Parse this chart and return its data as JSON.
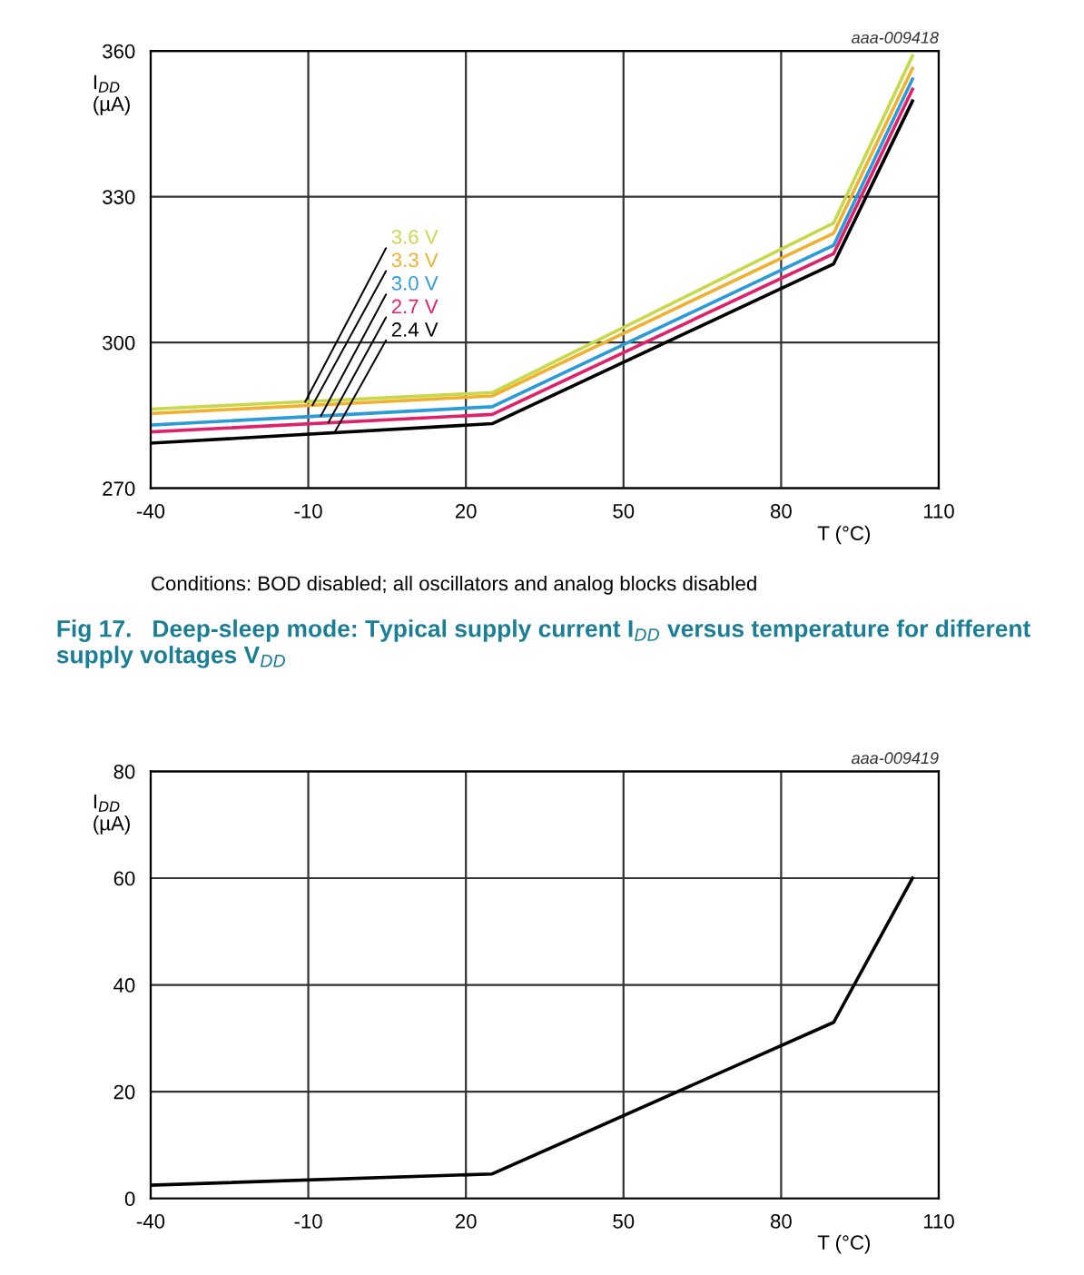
{
  "chart_data": [
    {
      "type": "line",
      "title": "Fig 17.   Deep-sleep mode: Typical supply current I$_{DD}$ versus temperature for different supply voltages V$_{DD}$",
      "xlabel": "T (°C)",
      "ylabel": "I$_{DD}$\n(µA)",
      "x": [
        -40,
        25,
        90,
        105
      ],
      "series": [
        {
          "color": "#c8d84a",
          "values": [
            286.3,
            289.7,
            324.6,
            359
          ]
        },
        {
          "color": "#f0b030",
          "values": [
            285.4,
            289,
            322.5,
            356.4
          ]
        },
        {
          "color": "#2a9ad8",
          "values": [
            283,
            286.8,
            320,
            354.2
          ]
        },
        {
          "color": "#e0206a",
          "values": [
            281.6,
            285.2,
            318.3,
            352.1
          ]
        },
        {
          "color": "#000000",
          "values": [
            279.3,
            283.3,
            316.2,
            349.7
          ]
        }
      ],
      "annotations": [
        {
          "text": "3.6 V",
          "x": -10.6,
          "y": 287.8
        },
        {
          "text": "3.3 V",
          "x": -9.2,
          "y": 287.1
        },
        {
          "text": "3.0 V",
          "x": -7.6,
          "y": 284.9
        },
        {
          "text": "2.7 V",
          "x": -6.2,
          "y": 283.5
        },
        {
          "text": "2.4 V",
          "x": -5,
          "y": 281.5
        },
        "aaa-009418",
        "Conditions: BOD disabled; all oscillators and analog blocks disabled"
      ],
      "xlim": [
        -40,
        110
      ],
      "ylim": [
        270,
        360
      ],
      "xticks": [
        -40,
        -10,
        20,
        50,
        80,
        110
      ],
      "yticks": [
        270,
        300,
        330,
        360
      ],
      "grid": true,
      "marker": "none",
      "line_style": "solid"
    },
    {
      "type": "line",
      "xlabel": "T (°C)",
      "ylabel": "I$_{DD}$\n(µA)",
      "x": [
        -40,
        25,
        90,
        105
      ],
      "series": [
        {
          "color": "#000000",
          "values": [
            2.5,
            4.6,
            33,
            60
          ]
        }
      ],
      "annotations": [
        "aaa-009419"
      ],
      "xlim": [
        -40,
        110
      ],
      "ylim": [
        0,
        80
      ],
      "xticks": [
        -40,
        -10,
        20,
        50,
        80,
        110
      ],
      "yticks": [
        0,
        20,
        40,
        60,
        80
      ],
      "grid": true,
      "marker": "none",
      "line_style": "solid"
    }
  ]
}
